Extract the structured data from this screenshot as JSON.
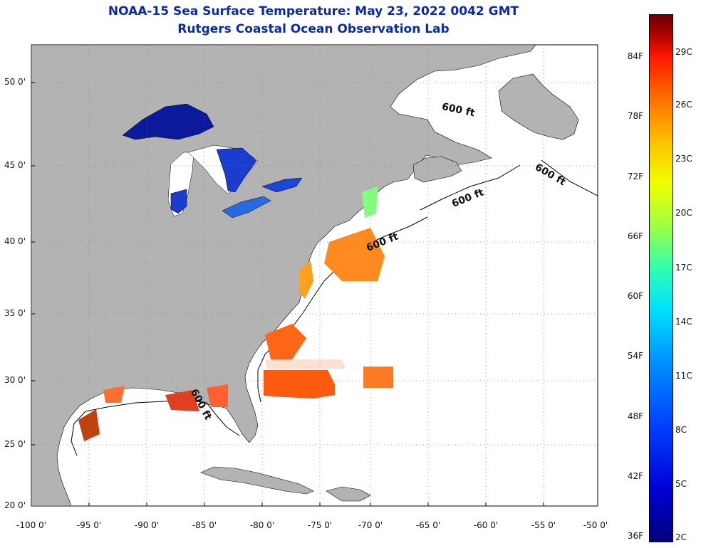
{
  "header": {
    "title_line1": "NOAA-15 Sea Surface Temperature:  May 23, 2022 0042 GMT",
    "title_line2": "Rutgers Coastal Ocean Observation Lab"
  },
  "map": {
    "lat_labels": [
      "50 0'",
      "45 0'",
      "40 0'",
      "35 0'",
      "30 0'",
      "25 0'",
      "20 0'"
    ],
    "lon_labels": [
      "-100 0'",
      "-95 0'",
      "-90 0'",
      "-85 0'",
      "-80 0'",
      "-75 0'",
      "-70 0'",
      "-65 0'",
      "-60 0'",
      "-55 0'",
      "-50 0'"
    ],
    "contour_labels": [
      "600 ft",
      "600 ft",
      "600 ft",
      "600 ft",
      "600 ft"
    ],
    "colors": {
      "land": "#b3b3b3",
      "ocean": "#ffffff",
      "grid": "#808080"
    }
  },
  "colorbar": {
    "fahrenheit_labels": [
      "84F",
      "78F",
      "72F",
      "66F",
      "60F",
      "54F",
      "48F",
      "42F",
      "36F"
    ],
    "celsius_labels": [
      "29C",
      "26C",
      "23C",
      "20C",
      "17C",
      "14C",
      "11C",
      "8C",
      "5C",
      "2C"
    ]
  }
}
